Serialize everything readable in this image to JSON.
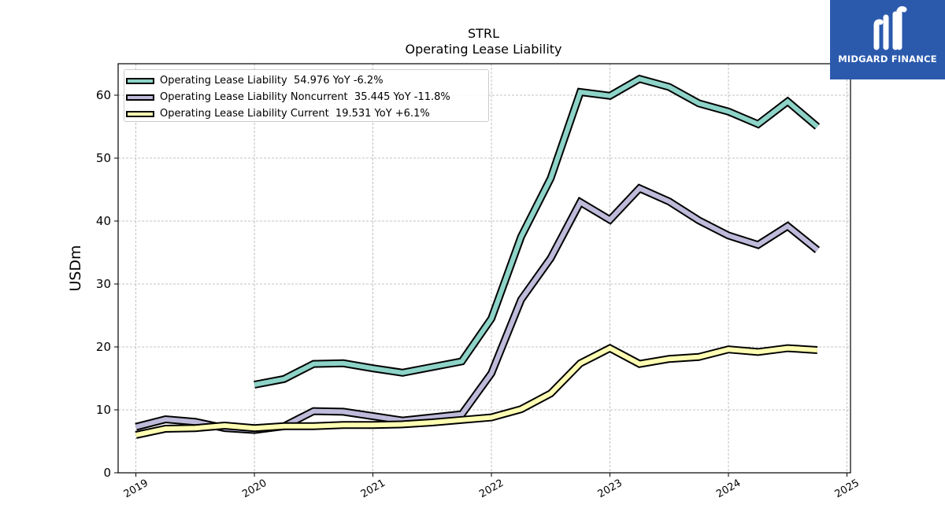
{
  "brand": {
    "name": "MIDGARD FINANCE",
    "background": "#2b5aad"
  },
  "chart_data": {
    "type": "line",
    "title": "STRL",
    "subtitle": "Operating Lease Liability",
    "ylabel": "USDm",
    "xlabel": "",
    "ylim": [
      0,
      65
    ],
    "xlim": [
      2018.85,
      2025.03
    ],
    "yticks": [
      0,
      10,
      20,
      30,
      40,
      50,
      60
    ],
    "xticks": [
      2019,
      2020,
      2021,
      2022,
      2023,
      2024,
      2025
    ],
    "xtick_labels": [
      "2019",
      "2020",
      "2021",
      "2022",
      "2023",
      "2024",
      "2025"
    ],
    "grid": true,
    "legend_position": "top-left",
    "series": [
      {
        "name": "Operating Lease Liability",
        "legend": "Operating Lease Liability  54.976 YoY -6.2%",
        "color": "#8dd3c7",
        "x": [
          2020.0,
          2020.25,
          2020.5,
          2020.75,
          2021.0,
          2021.25,
          2021.5,
          2021.75,
          2022.0,
          2022.25,
          2022.5,
          2022.75,
          2023.0,
          2023.25,
          2023.5,
          2023.75,
          2024.0,
          2024.25,
          2024.5,
          2024.75
        ],
        "values": [
          14.0,
          14.9,
          17.3,
          17.4,
          16.6,
          15.9,
          16.8,
          17.7,
          24.5,
          37.5,
          46.8,
          60.5,
          59.9,
          62.6,
          61.3,
          58.7,
          57.4,
          55.4,
          59.0,
          55.0
        ]
      },
      {
        "name": "Operating Lease Liability Noncurrent",
        "legend": "Operating Lease Liability Noncurrent  35.445 YoY -11.8%",
        "color": "#bebada",
        "x": [
          2019.0,
          2019.25,
          2019.5,
          2019.75,
          2020.0,
          2020.25,
          2020.5,
          2020.75,
          2021.0,
          2021.25,
          2021.5,
          2021.75,
          2022.0,
          2022.25,
          2022.5,
          2022.75,
          2023.0,
          2023.25,
          2023.5,
          2023.75,
          2024.0,
          2024.25,
          2024.5,
          2024.75
        ],
        "values": [
          7.3,
          8.5,
          8.1,
          7.1,
          6.8,
          7.4,
          9.8,
          9.7,
          9.0,
          8.3,
          8.8,
          9.3,
          15.8,
          27.5,
          34.1,
          43.0,
          40.2,
          45.2,
          43.1,
          40.1,
          37.7,
          36.2,
          39.2,
          35.4
        ]
      },
      {
        "name": "Operating Lease Liability Current",
        "legend": "Operating Lease Liability Current  19.531 YoY +6.1%",
        "color": "#ffffb3",
        "x": [
          2019.0,
          2019.25,
          2019.5,
          2019.75,
          2020.0,
          2020.25,
          2020.5,
          2020.75,
          2021.0,
          2021.25,
          2021.5,
          2021.75,
          2022.0,
          2022.25,
          2022.5,
          2022.75,
          2023.0,
          2023.25,
          2023.5,
          2023.75,
          2024.0,
          2024.25,
          2024.5,
          2024.75
        ],
        "values": [
          6.0,
          7.0,
          7.1,
          7.5,
          7.1,
          7.4,
          7.4,
          7.6,
          7.6,
          7.7,
          8.0,
          8.4,
          8.8,
          10.1,
          12.6,
          17.4,
          19.8,
          17.3,
          18.1,
          18.4,
          19.6,
          19.2,
          19.8,
          19.5
        ]
      }
    ]
  }
}
